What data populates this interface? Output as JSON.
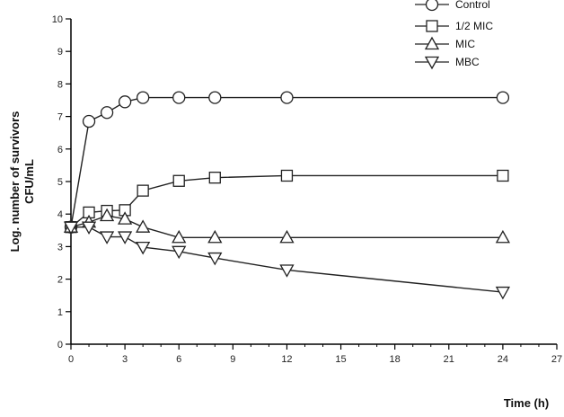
{
  "chart_data": {
    "type": "line",
    "title": "",
    "xlabel": "Time (h)",
    "ylabel_lines": [
      "Log. number of survivors",
      "CFU/mL"
    ],
    "xlim": [
      0,
      27
    ],
    "ylim": [
      0,
      10
    ],
    "x_ticks": [
      0,
      3,
      6,
      9,
      12,
      15,
      18,
      21,
      24,
      27
    ],
    "x_minor_ticks": [
      1,
      2,
      4,
      5,
      7,
      8,
      10,
      11,
      13,
      14,
      16,
      17,
      19,
      20,
      22,
      23,
      25,
      26
    ],
    "y_ticks": [
      0,
      1,
      2,
      3,
      4,
      5,
      6,
      7,
      8,
      9,
      10
    ],
    "grid": false,
    "legend_position": "top-right",
    "series": [
      {
        "name": "Control",
        "marker": "circle",
        "x": [
          0,
          1,
          2,
          3,
          4,
          6,
          8,
          12,
          24
        ],
        "y": [
          3.6,
          6.85,
          7.12,
          7.45,
          7.58,
          7.58,
          7.58,
          7.58,
          7.58
        ]
      },
      {
        "name": "1/2 MIC",
        "marker": "square",
        "x": [
          0,
          1,
          2,
          3,
          4,
          6,
          8,
          12,
          24
        ],
        "y": [
          3.6,
          4.05,
          4.1,
          4.12,
          4.72,
          5.02,
          5.12,
          5.18,
          5.18
        ]
      },
      {
        "name": "MIC",
        "marker": "triangle-up",
        "x": [
          0,
          1,
          2,
          3,
          4,
          6,
          8,
          12,
          24
        ],
        "y": [
          3.6,
          3.75,
          3.95,
          3.85,
          3.6,
          3.28,
          3.28,
          3.28,
          3.28
        ]
      },
      {
        "name": "MBC",
        "marker": "triangle-down",
        "x": [
          0,
          1,
          2,
          3,
          4,
          6,
          8,
          12,
          24
        ],
        "y": [
          3.6,
          3.6,
          3.3,
          3.3,
          2.98,
          2.85,
          2.65,
          2.28,
          1.6
        ]
      }
    ]
  }
}
